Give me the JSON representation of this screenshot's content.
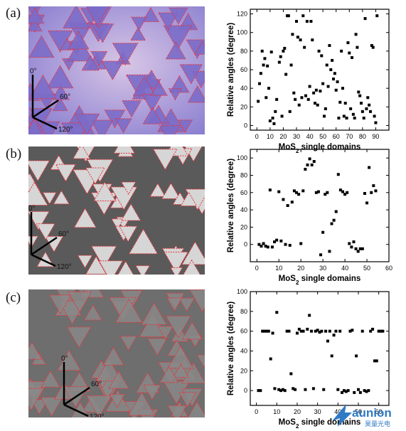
{
  "panels": [
    {
      "label": "(a)",
      "image": {
        "description_axes": [
          "0°",
          "60°",
          "120°"
        ],
        "background": "#8a7fd0",
        "triangle_fill": "#7b6cc8",
        "bg_light": "#d8c6e6"
      }
    },
    {
      "label": "(b)",
      "image": {
        "description_axes": [
          "0°",
          "60°",
          "120°"
        ],
        "background": "#5a5a5a",
        "triangle_fill": "#d6d6d6"
      }
    },
    {
      "label": "(c)",
      "image": {
        "description_axes": [
          "0°",
          "60°",
          "120°"
        ],
        "background": "#6e6e6e",
        "triangle_fill": "#8a8a8a"
      }
    }
  ],
  "chart_data": [
    {
      "type": "scatter",
      "xlabel": "MoS2 single domains",
      "ylabel": "Relative angles (degree)",
      "xlim": [
        -5,
        100
      ],
      "ylim": [
        -5,
        125
      ],
      "xticks": [
        0,
        10,
        20,
        30,
        40,
        50,
        60,
        70,
        80,
        90
      ],
      "yticks": [
        0,
        20,
        40,
        60,
        80,
        100,
        120
      ],
      "series": [
        {
          "points": [
            [
              1,
              26
            ],
            [
              2,
              45
            ],
            [
              3,
              56
            ],
            [
              4,
              80
            ],
            [
              5,
              65
            ],
            [
              6,
              72
            ],
            [
              7,
              30
            ],
            [
              8,
              64
            ],
            [
              9,
              40
            ],
            [
              10,
              5
            ],
            [
              11,
              79
            ],
            [
              12,
              8
            ],
            [
              13,
              2
            ],
            [
              14,
              15
            ],
            [
              15,
              28
            ],
            [
              17,
              68
            ],
            [
              18,
              74
            ],
            [
              19,
              10
            ],
            [
              20,
              80
            ],
            [
              21,
              83
            ],
            [
              22,
              55
            ],
            [
              23,
              118
            ],
            [
              24,
              118
            ],
            [
              25,
              15
            ],
            [
              26,
              65
            ],
            [
              27,
              98
            ],
            [
              28,
              35
            ],
            [
              29,
              28
            ],
            [
              30,
              112
            ],
            [
              31,
              95
            ],
            [
              32,
              22
            ],
            [
              33,
              92
            ],
            [
              34,
              30
            ],
            [
              35,
              118
            ],
            [
              36,
              84
            ],
            [
              37,
              32
            ],
            [
              38,
              112
            ],
            [
              39,
              28
            ],
            [
              40,
              42
            ],
            [
              41,
              112
            ],
            [
              42,
              92
            ],
            [
              43,
              35
            ],
            [
              44,
              24
            ],
            [
              45,
              38
            ],
            [
              46,
              22
            ],
            [
              47,
              80
            ],
            [
              48,
              37
            ],
            [
              49,
              75
            ],
            [
              50,
              45
            ],
            [
              51,
              10
            ],
            [
              52,
              18
            ],
            [
              53,
              65
            ],
            [
              54,
              42
            ],
            [
              55,
              86
            ],
            [
              56,
              60
            ],
            [
              57,
              70
            ],
            [
              58,
              50
            ],
            [
              59,
              56
            ],
            [
              60,
              38
            ],
            [
              61,
              47
            ],
            [
              62,
              8
            ],
            [
              63,
              25
            ],
            [
              64,
              80
            ],
            [
              65,
              40
            ],
            [
              66,
              10
            ],
            [
              67,
              24
            ],
            [
              68,
              8
            ],
            [
              69,
              89
            ],
            [
              70,
              78
            ],
            [
              71,
              18
            ],
            [
              72,
              73
            ],
            [
              73,
              12
            ],
            [
              74,
              8
            ],
            [
              75,
              98
            ],
            [
              76,
              84
            ],
            [
              77,
              36
            ],
            [
              78,
              32
            ],
            [
              79,
              24
            ],
            [
              80,
              15
            ],
            [
              81,
              8
            ],
            [
              82,
              115
            ],
            [
              83,
              18
            ],
            [
              84,
              30
            ],
            [
              85,
              22
            ],
            [
              86,
              15
            ],
            [
              87,
              86
            ],
            [
              88,
              84
            ],
            [
              89,
              10
            ],
            [
              90,
              3
            ],
            [
              91,
              118
            ]
          ]
        }
      ]
    },
    {
      "type": "scatter",
      "xlabel": "MoS2 single domains",
      "ylabel": "Relative angles (degree)",
      "xlim": [
        -3,
        60
      ],
      "ylim": [
        -20,
        110
      ],
      "xticks": [
        0,
        10,
        20,
        30,
        40,
        50,
        60
      ],
      "yticks": [
        0,
        20,
        40,
        60,
        80,
        100
      ],
      "series": [
        {
          "points": [
            [
              1,
              0
            ],
            [
              2,
              -2
            ],
            [
              3,
              1
            ],
            [
              4,
              -2
            ],
            [
              5,
              -3
            ],
            [
              6,
              63
            ],
            [
              7,
              -3
            ],
            [
              8,
              3
            ],
            [
              9,
              5
            ],
            [
              10,
              61
            ],
            [
              11,
              4
            ],
            [
              12,
              52
            ],
            [
              13,
              0
            ],
            [
              14,
              45
            ],
            [
              15,
              -1
            ],
            [
              16,
              49
            ],
            [
              17,
              62
            ],
            [
              18,
              60
            ],
            [
              19,
              58
            ],
            [
              20,
              1
            ],
            [
              21,
              62
            ],
            [
              22,
              87
            ],
            [
              23,
              92
            ],
            [
              24,
              99
            ],
            [
              25,
              92
            ],
            [
              26,
              96
            ],
            [
              27,
              60
            ],
            [
              28,
              61
            ],
            [
              29,
              -12
            ],
            [
              30,
              14
            ],
            [
              31,
              58
            ],
            [
              32,
              60
            ],
            [
              33,
              -8
            ],
            [
              34,
              24
            ],
            [
              35,
              28
            ],
            [
              36,
              38
            ],
            [
              37,
              81
            ],
            [
              38,
              63
            ],
            [
              39,
              61
            ],
            [
              40,
              58
            ],
            [
              41,
              60
            ],
            [
              42,
              1
            ],
            [
              43,
              -3
            ],
            [
              44,
              3
            ],
            [
              45,
              -5
            ],
            [
              46,
              -8
            ],
            [
              47,
              -5
            ],
            [
              48,
              -5
            ],
            [
              49,
              59
            ],
            [
              50,
              48
            ],
            [
              51,
              89
            ],
            [
              52,
              60
            ],
            [
              53,
              68
            ],
            [
              54,
              62
            ]
          ]
        }
      ]
    },
    {
      "type": "scatter",
      "xlabel": "MoS2 single domains",
      "ylabel": "Relative angles (degree)",
      "xlim": [
        -3,
        65
      ],
      "ylim": [
        -15,
        100
      ],
      "xticks": [
        0,
        10,
        20,
        30,
        40,
        50,
        60
      ],
      "yticks": [
        0,
        20,
        40,
        60,
        80,
        100
      ],
      "series": [
        {
          "points": [
            [
              1,
              0
            ],
            [
              2,
              0
            ],
            [
              3,
              60
            ],
            [
              4,
              60
            ],
            [
              5,
              60
            ],
            [
              6,
              60
            ],
            [
              7,
              32
            ],
            [
              8,
              58
            ],
            [
              9,
              2
            ],
            [
              10,
              79
            ],
            [
              11,
              1
            ],
            [
              12,
              0
            ],
            [
              13,
              1
            ],
            [
              14,
              0
            ],
            [
              15,
              60
            ],
            [
              16,
              60
            ],
            [
              17,
              17
            ],
            [
              18,
              2
            ],
            [
              19,
              1
            ],
            [
              20,
              58
            ],
            [
              21,
              62
            ],
            [
              22,
              60
            ],
            [
              23,
              60
            ],
            [
              24,
              1
            ],
            [
              25,
              62
            ],
            [
              26,
              76
            ],
            [
              27,
              60
            ],
            [
              28,
              2
            ],
            [
              29,
              60
            ],
            [
              30,
              61
            ],
            [
              31,
              59
            ],
            [
              32,
              60
            ],
            [
              33,
              1
            ],
            [
              34,
              60
            ],
            [
              35,
              50
            ],
            [
              36,
              60
            ],
            [
              37,
              35
            ],
            [
              38,
              56
            ],
            [
              39,
              60
            ],
            [
              40,
              1
            ],
            [
              41,
              60
            ],
            [
              42,
              -2
            ],
            [
              43,
              0
            ],
            [
              44,
              -1
            ],
            [
              45,
              0
            ],
            [
              46,
              60
            ],
            [
              47,
              61
            ],
            [
              48,
              -2
            ],
            [
              49,
              35
            ],
            [
              50,
              1
            ],
            [
              51,
              -2
            ],
            [
              52,
              60
            ],
            [
              53,
              0
            ],
            [
              54,
              -1
            ],
            [
              55,
              0
            ],
            [
              56,
              60
            ],
            [
              57,
              62
            ],
            [
              58,
              30
            ],
            [
              59,
              30
            ],
            [
              60,
              60
            ],
            [
              61,
              60
            ],
            [
              62,
              60
            ]
          ]
        }
      ]
    }
  ],
  "watermark": {
    "brand": "aunion",
    "cn": "昊量光电"
  }
}
